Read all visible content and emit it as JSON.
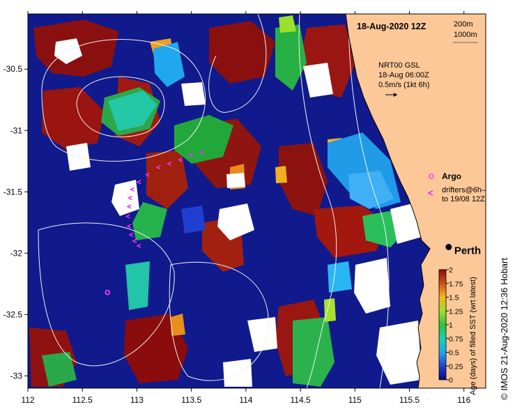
{
  "map": {
    "title": "18-Aug-2020 12Z",
    "x_axis": {
      "ticks": [
        112,
        112.5,
        113,
        113.5,
        114,
        114.5,
        115,
        115.5,
        116
      ],
      "range": [
        112,
        116.2
      ]
    },
    "y_axis": {
      "ticks": [
        -30.5,
        -31,
        -31.5,
        -32,
        -32.5,
        -33
      ],
      "range": [
        -33.1,
        -30.05
      ]
    },
    "isobath_legend": {
      "depth1": "200m",
      "depth2": "1000m"
    },
    "current_info": {
      "line1": "NRT00 GSL",
      "line2": "18-Aug 06:00Z",
      "line3": "0.5m/s (1kt 6h)"
    },
    "legend": {
      "argo_label": "Argo",
      "drifters_line1": "drifters@6h–",
      "drifters_line2": "to 19/08 12Z"
    },
    "city": {
      "name": "Perth",
      "lon": 115.86,
      "lat": -31.95
    },
    "argo_float": {
      "lon": 112.73,
      "lat": -32.32
    },
    "drifter_track": [
      [
        113.6,
        -31.18
      ],
      [
        113.5,
        -31.2
      ],
      [
        113.4,
        -31.24
      ],
      [
        113.3,
        -31.27
      ],
      [
        113.2,
        -31.3
      ],
      [
        113.1,
        -31.36
      ],
      [
        113.02,
        -31.42
      ],
      [
        112.96,
        -31.48
      ],
      [
        112.94,
        -31.55
      ],
      [
        112.93,
        -31.62
      ],
      [
        112.92,
        -31.7
      ],
      [
        112.93,
        -31.78
      ],
      [
        112.95,
        -31.85
      ],
      [
        112.98,
        -31.9
      ],
      [
        113.02,
        -31.94
      ]
    ],
    "colorbar": {
      "ticks": [
        "2",
        "1.75",
        "1.5",
        "1.25",
        "1",
        "0.75",
        "0.5",
        "0.25",
        "0"
      ],
      "label": "Age (days) of filled SST (wrt latest)"
    },
    "credit": "©  IMOS 21-Aug-2020 12:36 Hobart",
    "colors": {
      "ocean_fill": "#101a8c",
      "land": "#fcc898",
      "cloud": "#ffffff",
      "argo": "#ff44ff",
      "drifter": "#ee33ee"
    }
  }
}
